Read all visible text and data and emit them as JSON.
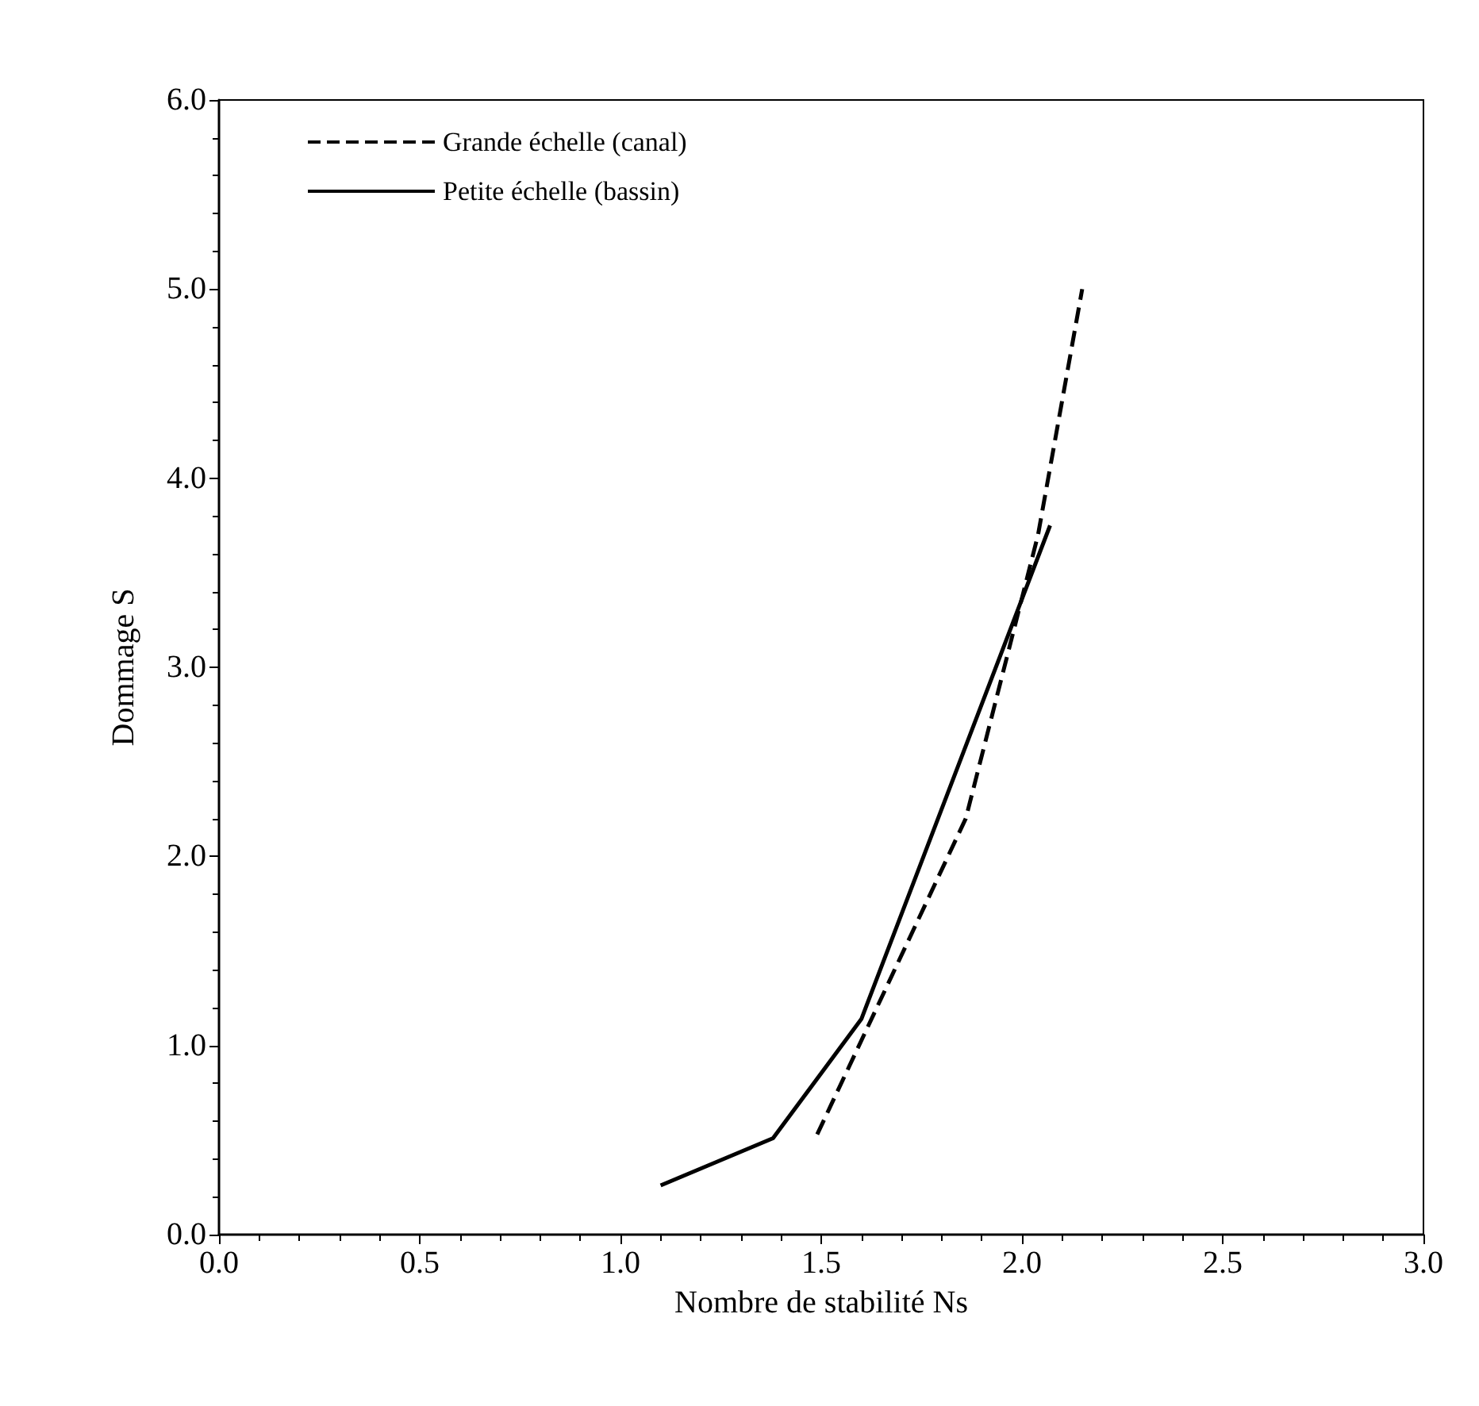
{
  "chart_data": {
    "type": "line",
    "xlabel": "Nombre de stabilité Ns",
    "ylabel": "Dommage S",
    "xlim": [
      0,
      3
    ],
    "ylim": [
      0,
      6
    ],
    "xticks": [
      {
        "value": 0,
        "label": "0.0"
      },
      {
        "value": 0.5,
        "label": "0.5"
      },
      {
        "value": 1,
        "label": "1.0"
      },
      {
        "value": 1.5,
        "label": "1.5"
      },
      {
        "value": 2,
        "label": "2.0"
      },
      {
        "value": 2.5,
        "label": "2.5"
      },
      {
        "value": 3,
        "label": "3.0"
      }
    ],
    "yticks": [
      {
        "value": 0,
        "label": "0.0"
      },
      {
        "value": 1,
        "label": "1.0"
      },
      {
        "value": 2,
        "label": "2.0"
      },
      {
        "value": 3,
        "label": "3.0"
      },
      {
        "value": 4,
        "label": "4.0"
      },
      {
        "value": 5,
        "label": "5.0"
      },
      {
        "value": 6,
        "label": "6.0"
      }
    ],
    "grid": false,
    "legend": "top left",
    "marker": "none",
    "series": [
      {
        "name": "Grande échelle (canal)",
        "color": "#000000",
        "line_style": "dashed",
        "x": [
          1.49,
          1.86,
          2.04,
          2.15
        ],
        "values": [
          0.53,
          2.2,
          3.7,
          5.0
        ]
      },
      {
        "name": "Petite échelle (bassin)",
        "color": "#000000",
        "line_style": "solid",
        "x": [
          1.1,
          1.38,
          1.6,
          2.07
        ],
        "values": [
          0.26,
          0.51,
          1.14,
          3.75
        ]
      }
    ]
  }
}
